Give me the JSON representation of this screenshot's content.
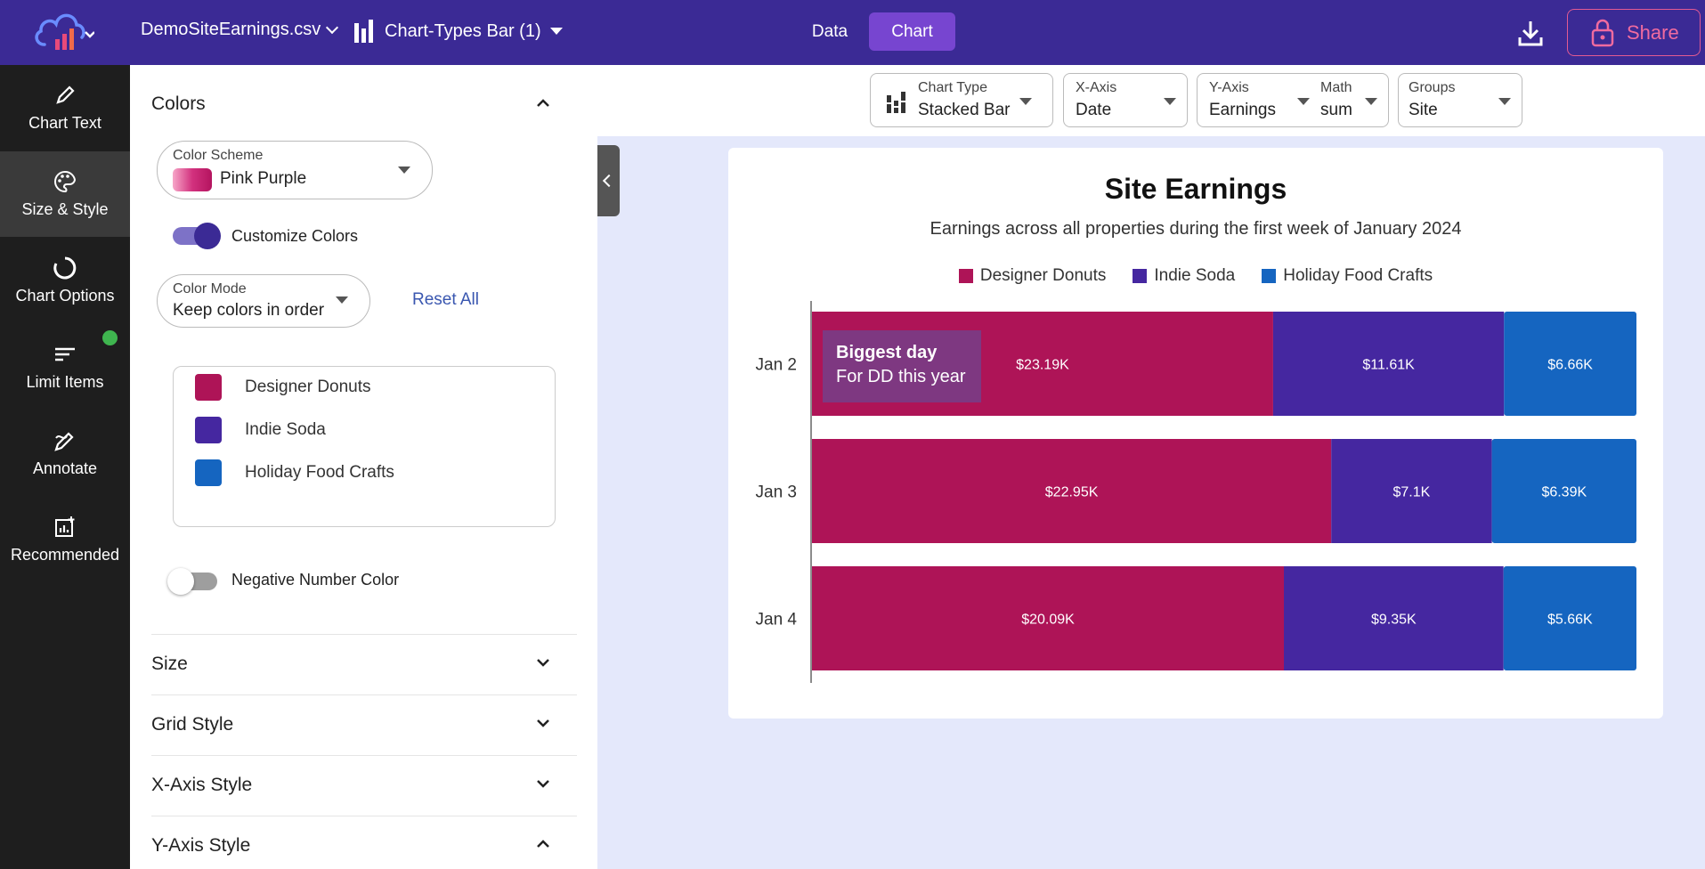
{
  "topbar": {
    "file_name": "DemoSiteEarnings.csv",
    "chart_name": "Chart-Types Bar (1)",
    "tabs": [
      {
        "label": "Data"
      },
      {
        "label": "Chart"
      }
    ],
    "share_label": "Share"
  },
  "rail": {
    "items": [
      {
        "label": "Chart Text",
        "icon": "pencil-icon"
      },
      {
        "label": "Size & Style",
        "icon": "palette-icon"
      },
      {
        "label": "Chart Options",
        "icon": "circle-options-icon"
      },
      {
        "label": "Limit Items",
        "icon": "lines-icon"
      },
      {
        "label": "Annotate",
        "icon": "annotate-pen-icon"
      },
      {
        "label": "Recommended",
        "icon": "recommended-chart-icon"
      }
    ],
    "active_index": 1
  },
  "panel": {
    "colors_title": "Colors",
    "color_scheme_label": "Color Scheme",
    "color_scheme_value": "Pink Purple",
    "customize_colors_label": "Customize Colors",
    "customize_colors_on": true,
    "color_mode_label": "Color Mode",
    "color_mode_value": "Keep colors in order",
    "reset_label": "Reset All",
    "color_items": [
      {
        "label": "Designer Donuts",
        "color": "#ae1457"
      },
      {
        "label": "Indie Soda",
        "color": "#4527a0"
      },
      {
        "label": "Holiday Food Crafts",
        "color": "#1565c0"
      }
    ],
    "negative_color_label": "Negative Number Color",
    "negative_color_on": false,
    "sections": [
      {
        "label": "Size"
      },
      {
        "label": "Grid Style"
      },
      {
        "label": "X-Axis Style"
      },
      {
        "label": "Y-Axis Style"
      }
    ]
  },
  "controls": {
    "chart_type": {
      "label": "Chart Type",
      "value": "Stacked Bar"
    },
    "x_axis": {
      "label": "X-Axis",
      "value": "Date"
    },
    "y_axis": {
      "label": "Y-Axis",
      "value": "Earnings"
    },
    "math": {
      "label": "Math",
      "value": "sum"
    },
    "groups": {
      "label": "Groups",
      "value": "Site"
    }
  },
  "chart_data": {
    "type": "bar",
    "orientation": "horizontal",
    "stacked": true,
    "title": "Site Earnings",
    "subtitle": "Earnings across all properties during the first week of January 2024",
    "categories": [
      "Jan 2",
      "Jan 3",
      "Jan 4"
    ],
    "series": [
      {
        "name": "Designer Donuts",
        "color": "#ae1457",
        "values": [
          23190,
          22950,
          20090
        ],
        "labels": [
          "$23.19K",
          "$22.95K",
          "$20.09K"
        ]
      },
      {
        "name": "Indie Soda",
        "color": "#4527a0",
        "values": [
          11610,
          7100,
          9350
        ],
        "labels": [
          "$11.61K",
          "$7.1K",
          "$9.35K"
        ]
      },
      {
        "name": "Holiday Food Crafts",
        "color": "#1565c0",
        "values": [
          6660,
          6390,
          5660
        ],
        "labels": [
          "$6.66K",
          "$6.39K",
          "$5.66K"
        ]
      }
    ],
    "legend_position": "top",
    "grid": false,
    "annotation": {
      "category": "Jan 2",
      "title": "Biggest day",
      "text": "For DD this year"
    }
  }
}
